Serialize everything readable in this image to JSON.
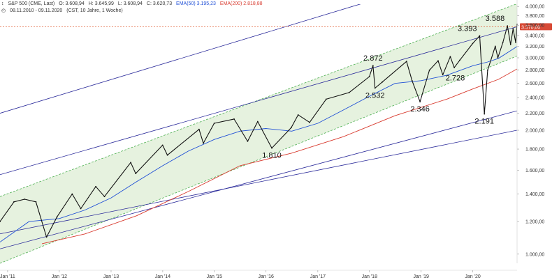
{
  "header": {
    "line1": {
      "symbol": "S&P 500 (CME, Last)",
      "open": "O: 3.608,94",
      "high": "H: 3.645,99",
      "low": "L: 3.608,94",
      "close": "C: 3.620,73",
      "ema50": "EMA(50)  3.195,23",
      "ema200": "EMA(200)  2.818,88"
    },
    "line2": {
      "date_range": "08.11.2010 - 09.11.2020",
      "info": "(CST, 10 Jahre, 1 Woche)"
    }
  },
  "colors": {
    "price": "#111111",
    "ema50": "#1f4fd6",
    "ema200": "#d83a2e",
    "channel_fill": "#e6f2df",
    "channel_edge": "#4caf50",
    "trend": "#2a2a9a",
    "ref_line": "#e0603a",
    "ref_badge": "#d84a36"
  },
  "chart_data": {
    "type": "line",
    "title": "",
    "xlabel": "",
    "ylabel": "",
    "y_scale": "log",
    "ylim": [
      950,
      4050
    ],
    "xlim": [
      "2010-11-08",
      "2020-11-09"
    ],
    "x_ticks": [
      "Jan '11",
      "Jan '12",
      "Jan '13",
      "Jan '14",
      "Jan '15",
      "Jan '16",
      "Jan '17",
      "Jan '18",
      "Jan '19",
      "Jan '20"
    ],
    "x_tick_dates": [
      "2011-01-01",
      "2012-01-01",
      "2013-01-01",
      "2014-01-01",
      "2015-01-01",
      "2016-01-01",
      "2017-01-01",
      "2018-01-01",
      "2019-01-01",
      "2020-01-01"
    ],
    "y_ticks": [
      1000,
      1200,
      1400,
      1600,
      1800,
      2000,
      2200,
      2400,
      2600,
      2800,
      3000,
      3200,
      3400,
      3600,
      3800,
      4000
    ],
    "y_tick_labels": [
      "1.000,00",
      "1.200,00",
      "1.400,00",
      "1.600,00",
      "1.800,00",
      "2.000,00",
      "2.200,00",
      "2.400,00",
      "2.600,00",
      "2.800,00",
      "3.000,00",
      "3.200,00",
      "3.400,00",
      "3.600,00",
      "3.800,00",
      "4.000,00"
    ],
    "grid": false,
    "series": [
      {
        "name": "S&P 500 (CME, Last)",
        "x": [
          "2010-11-08",
          "2011-02-15",
          "2011-05-01",
          "2011-07-20",
          "2011-10-03",
          "2011-12-15",
          "2012-04-01",
          "2012-06-01",
          "2012-09-15",
          "2012-11-15",
          "2013-05-20",
          "2013-06-24",
          "2013-12-31",
          "2014-02-03",
          "2014-09-15",
          "2014-10-15",
          "2014-12-31",
          "2015-05-20",
          "2015-08-24",
          "2015-11-03",
          "2016-02-11",
          "2016-06-27",
          "2016-08-15",
          "2016-11-04",
          "2017-03-01",
          "2017-08-10",
          "2017-12-31",
          "2018-01-26",
          "2018-02-09",
          "2018-04-02",
          "2018-09-20",
          "2018-10-29",
          "2018-12-24",
          "2019-03-01",
          "2019-05-01",
          "2019-06-03",
          "2019-07-26",
          "2019-08-23",
          "2019-10-01",
          "2019-12-31",
          "2020-02-19",
          "2020-03-23",
          "2020-04-15",
          "2020-06-08",
          "2020-06-26",
          "2020-08-01",
          "2020-09-02",
          "2020-09-24",
          "2020-10-12",
          "2020-10-30",
          "2020-11-09"
        ],
        "y": [
          1200,
          1340,
          1360,
          1340,
          1100,
          1230,
          1400,
          1290,
          1460,
          1380,
          1670,
          1570,
          1840,
          1740,
          2010,
          1860,
          2080,
          2130,
          1880,
          2100,
          1810,
          2030,
          2180,
          2090,
          2380,
          2470,
          2700,
          2872,
          2532,
          2620,
          2940,
          2640,
          2346,
          2800,
          2950,
          2728,
          3020,
          2840,
          2960,
          3250,
          3393,
          2191,
          2800,
          3200,
          3000,
          3270,
          3588,
          3230,
          3530,
          3270,
          3620
        ]
      },
      {
        "name": "EMA(50)",
        "x": [
          "2010-11-08",
          "2011-06-01",
          "2012-01-01",
          "2012-07-01",
          "2013-01-01",
          "2013-07-01",
          "2014-01-01",
          "2014-07-01",
          "2015-01-01",
          "2015-07-01",
          "2016-01-01",
          "2016-07-01",
          "2017-01-01",
          "2017-07-01",
          "2018-01-01",
          "2018-07-01",
          "2019-01-01",
          "2019-07-01",
          "2020-01-01",
          "2020-04-15",
          "2020-07-01",
          "2020-11-09"
        ],
        "y": [
          1070,
          1200,
          1220,
          1280,
          1370,
          1500,
          1640,
          1780,
          1900,
          1990,
          2020,
          1990,
          2080,
          2240,
          2420,
          2600,
          2640,
          2720,
          2870,
          2930,
          2990,
          3195
        ]
      },
      {
        "name": "EMA(200)",
        "x": [
          "2011-09-01",
          "2012-07-01",
          "2013-07-01",
          "2014-07-01",
          "2015-07-01",
          "2016-07-01",
          "2017-07-01",
          "2018-07-01",
          "2019-07-01",
          "2020-01-01",
          "2020-07-01",
          "2020-11-09"
        ],
        "y": [
          1060,
          1120,
          1240,
          1420,
          1640,
          1760,
          1930,
          2170,
          2380,
          2520,
          2660,
          2819
        ]
      }
    ],
    "annotations": [
      {
        "label": "2.872",
        "x": "2018-01-26",
        "y": 2872,
        "pos": "above"
      },
      {
        "label": "2.532",
        "x": "2018-02-09",
        "y": 2532,
        "pos": "below"
      },
      {
        "label": "2.346",
        "x": "2018-12-24",
        "y": 2346,
        "pos": "below"
      },
      {
        "label": "2.728",
        "x": "2019-06-03",
        "y": 2728,
        "pos": "right"
      },
      {
        "label": "3.393",
        "x": "2020-02-19",
        "y": 3393,
        "pos": "above-left"
      },
      {
        "label": "2.191",
        "x": "2020-03-23",
        "y": 2191,
        "pos": "below"
      },
      {
        "label": "3.588",
        "x": "2020-09-02",
        "y": 3588,
        "pos": "above-left"
      },
      {
        "label": "1.810",
        "x": "2016-02-11",
        "y": 1810,
        "pos": "below"
      }
    ],
    "reference_line": {
      "value": 3570,
      "label": "3.570,00"
    },
    "channel": [
      {
        "name": "upper",
        "from": {
          "x": "2010-11-08",
          "y": 1380
        },
        "to": {
          "x": "2020-11-09",
          "y": 4060
        }
      },
      {
        "name": "lower",
        "from": {
          "x": "2010-11-08",
          "y": 950
        },
        "to": {
          "x": "2020-11-09",
          "y": 3030
        }
      }
    ],
    "trendlines": [
      {
        "name": "outer-upper",
        "from": {
          "x": "2010-11-08",
          "y": 2200
        },
        "to": {
          "x": "2020-09-01",
          "y": 5200
        }
      },
      {
        "name": "mid-upper",
        "from": {
          "x": "2010-11-08",
          "y": 1560
        },
        "to": {
          "x": "2020-11-09",
          "y": 3570
        }
      },
      {
        "name": "lower",
        "from": {
          "x": "2010-11-08",
          "y": 1120
        },
        "to": {
          "x": "2020-11-09",
          "y": 2000
        }
      },
      {
        "name": "outer-lower",
        "from": {
          "x": "2010-11-08",
          "y": 1030
        },
        "to": {
          "x": "2020-11-09",
          "y": 2230
        }
      }
    ]
  }
}
